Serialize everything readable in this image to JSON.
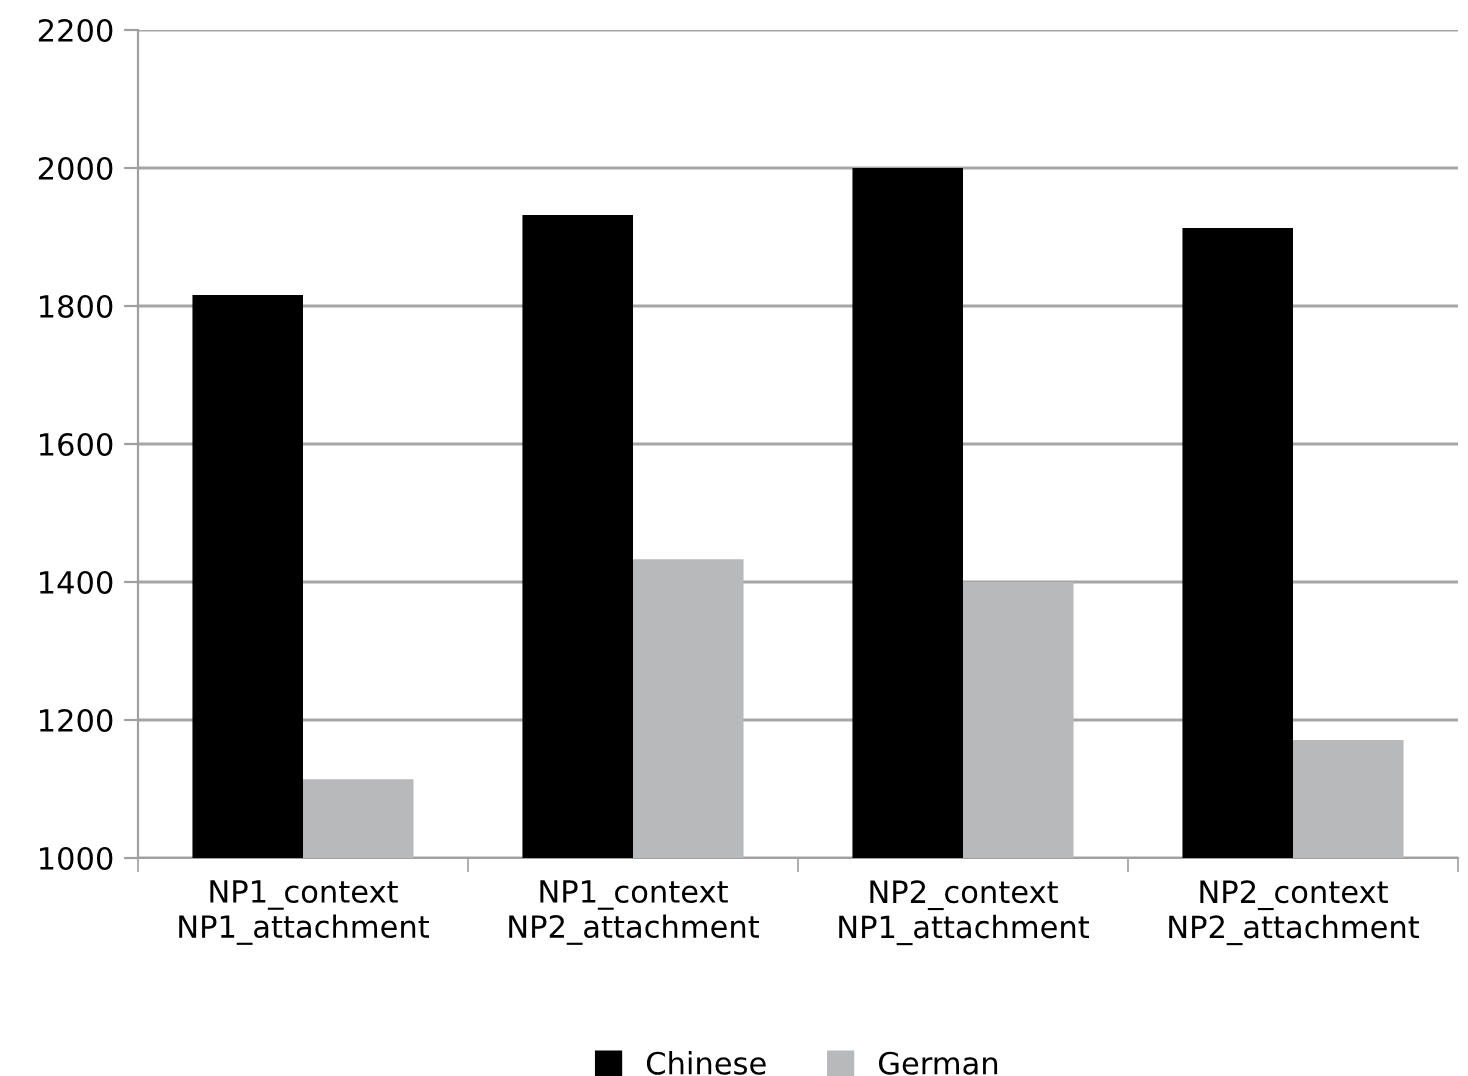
{
  "chart_data": {
    "type": "bar",
    "categories": [
      "NP1_context\nNP1_attachment",
      "NP1_context\nNP2_attachment",
      "NP2_context\nNP1_attachment",
      "NP2_context\nNP2_attachment"
    ],
    "series": [
      {
        "name": "Chinese",
        "color": "#000000",
        "values": [
          1816,
          1932,
          2000,
          1913
        ]
      },
      {
        "name": "German",
        "color": "#b8b9bb",
        "values": [
          1114,
          1433,
          1400,
          1171
        ]
      }
    ],
    "ylim": [
      1000,
      2200
    ],
    "yticks": [
      1000,
      1200,
      1400,
      1600,
      1800,
      2000,
      2200
    ],
    "grid": "y",
    "legend": "bottom"
  }
}
